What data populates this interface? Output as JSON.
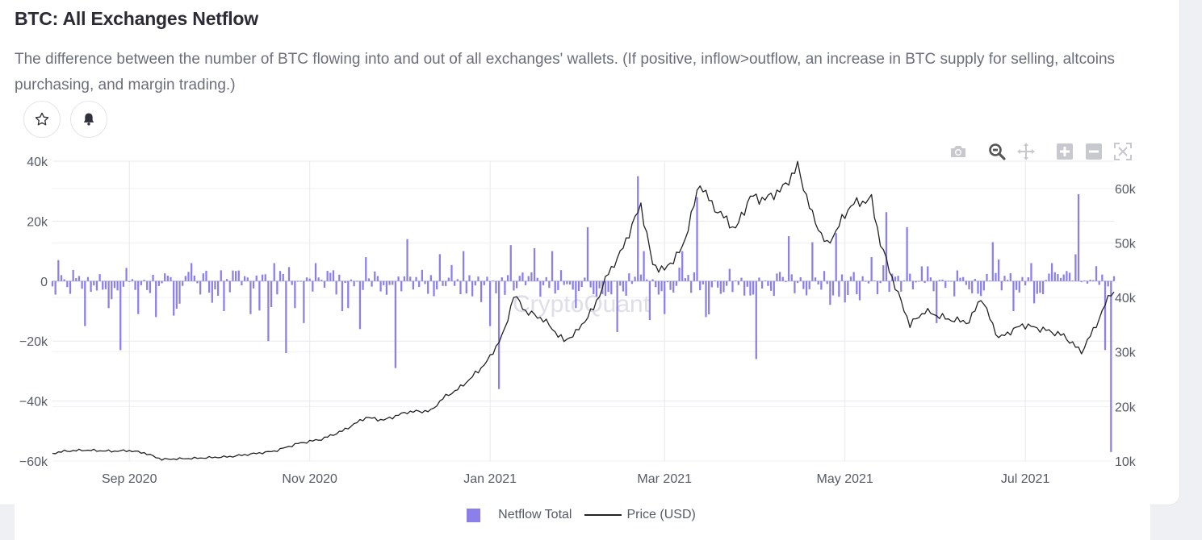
{
  "header": {
    "title": "BTC: All Exchanges Netflow",
    "description": "The difference between the number of BTC flowing into and out of all exchanges' wallets. (If positive, inflow>outflow, an increase in BTC supply for selling, altcoins purchasing, and margin trading.)"
  },
  "actions": {
    "favorite_icon": "star-icon",
    "alert_icon": "bell-icon"
  },
  "modebar": [
    "camera-icon",
    "zoom-icon",
    "pan-icon",
    "zoom-in-icon",
    "zoom-out-icon",
    "autoscale-icon"
  ],
  "watermark": "CryptoQuant",
  "colors": {
    "bars": "#8b80ea",
    "price": "#222222",
    "grid": "#e8e8ee"
  },
  "legend": {
    "netflow_label": "Netflow Total",
    "price_label": "Price (USD)"
  },
  "chart_data": {
    "type": "bar",
    "title": "BTC: All Exchanges Netflow",
    "x_ticks": [
      "Sep 2020",
      "Nov 2020",
      "Jan 2021",
      "Mar 2021",
      "May 2021",
      "Jul 2021"
    ],
    "x_range": [
      "2020-08-06",
      "2021-07-31"
    ],
    "y_left": {
      "ticks": [
        "40k",
        "20k",
        "0",
        "−20k",
        "−40k",
        "−60k"
      ],
      "range": [
        -60000,
        40000
      ]
    },
    "y_right": {
      "ticks": [
        "60k",
        "50k",
        "40k",
        "30k",
        "20k",
        "10k"
      ],
      "range": [
        10000,
        65000
      ]
    },
    "grid": true,
    "legend_position": "bottom-center",
    "series": [
      {
        "name": "Netflow Total",
        "kind": "bar",
        "axis": "left",
        "points": [
          [
            "2020-08-08",
            7000
          ],
          [
            "2020-08-17",
            -15000
          ],
          [
            "2020-08-25",
            -9000
          ],
          [
            "2020-08-29",
            -23000
          ],
          [
            "2020-09-04",
            -11000
          ],
          [
            "2020-09-10",
            -12000
          ],
          [
            "2020-09-16",
            -11500
          ],
          [
            "2020-09-22",
            6000
          ],
          [
            "2020-10-03",
            -10000
          ],
          [
            "2020-10-12",
            -11000
          ],
          [
            "2020-10-18",
            -20000
          ],
          [
            "2020-10-20",
            6000
          ],
          [
            "2020-10-24",
            -24000
          ],
          [
            "2020-10-27",
            -9000
          ],
          [
            "2020-10-30",
            -14000
          ],
          [
            "2020-11-03",
            6000
          ],
          [
            "2020-11-12",
            -10000
          ],
          [
            "2020-11-14",
            -9000
          ],
          [
            "2020-11-18",
            -16000
          ],
          [
            "2020-11-20",
            8000
          ],
          [
            "2020-11-30",
            -29000
          ],
          [
            "2020-12-04",
            14000
          ],
          [
            "2020-12-15",
            9000
          ],
          [
            "2020-12-23",
            10000
          ],
          [
            "2020-12-29",
            -7000
          ],
          [
            "2021-01-01",
            -15000
          ],
          [
            "2021-01-04",
            -36000
          ],
          [
            "2021-01-08",
            12000
          ],
          [
            "2021-01-16",
            11000
          ],
          [
            "2021-01-22",
            10000
          ],
          [
            "2021-01-30",
            -9000
          ],
          [
            "2021-02-03",
            18000
          ],
          [
            "2021-02-13",
            -17000
          ],
          [
            "2021-02-20",
            35000
          ],
          [
            "2021-02-22",
            10000
          ],
          [
            "2021-02-24",
            -13000
          ],
          [
            "2021-03-01",
            -11000
          ],
          [
            "2021-03-07",
            10000
          ],
          [
            "2021-03-12",
            28000
          ],
          [
            "2021-03-15",
            -12000
          ],
          [
            "2021-04-01",
            -26000
          ],
          [
            "2021-04-12",
            15000
          ],
          [
            "2021-04-20",
            13000
          ],
          [
            "2021-04-28",
            16000
          ],
          [
            "2021-05-10",
            8000
          ],
          [
            "2021-05-15",
            23000
          ],
          [
            "2021-05-22",
            18000
          ],
          [
            "2021-06-01",
            -14000
          ],
          [
            "2021-06-20",
            13000
          ],
          [
            "2021-06-27",
            -10000
          ],
          [
            "2021-07-03",
            6000
          ],
          [
            "2021-07-10",
            6000
          ],
          [
            "2021-07-19",
            29000
          ],
          [
            "2021-07-25",
            5000
          ],
          [
            "2021-07-28",
            -23000
          ],
          [
            "2021-07-30",
            -57000
          ]
        ]
      },
      {
        "name": "Price (USD)",
        "kind": "line",
        "axis": "right",
        "points": [
          [
            "2020-08-06",
            11400
          ],
          [
            "2020-08-10",
            11800
          ],
          [
            "2020-08-17",
            12000
          ],
          [
            "2020-08-26",
            11800
          ],
          [
            "2020-09-01",
            11900
          ],
          [
            "2020-09-06",
            11500
          ],
          [
            "2020-09-12",
            10300
          ],
          [
            "2020-09-23",
            10500
          ],
          [
            "2020-10-05",
            10800
          ],
          [
            "2020-10-20",
            11800
          ],
          [
            "2020-10-28",
            13200
          ],
          [
            "2020-11-05",
            14000
          ],
          [
            "2020-11-12",
            15500
          ],
          [
            "2020-11-20",
            18000
          ],
          [
            "2020-11-26",
            17500
          ],
          [
            "2020-12-04",
            19000
          ],
          [
            "2020-12-12",
            19200
          ],
          [
            "2020-12-16",
            21500
          ],
          [
            "2020-12-22",
            23500
          ],
          [
            "2020-12-28",
            26500
          ],
          [
            "2021-01-01",
            29000
          ],
          [
            "2021-01-06",
            34000
          ],
          [
            "2021-01-09",
            40500
          ],
          [
            "2021-01-13",
            37500
          ],
          [
            "2021-01-19",
            36000
          ],
          [
            "2021-01-26",
            32000
          ],
          [
            "2021-01-30",
            33500
          ],
          [
            "2021-02-05",
            38000
          ],
          [
            "2021-02-10",
            44500
          ],
          [
            "2021-02-14",
            48000
          ],
          [
            "2021-02-21",
            57000
          ],
          [
            "2021-02-25",
            46000
          ],
          [
            "2021-03-01",
            45000
          ],
          [
            "2021-03-07",
            49000
          ],
          [
            "2021-03-13",
            61000
          ],
          [
            "2021-03-17",
            57000
          ],
          [
            "2021-03-25",
            52500
          ],
          [
            "2021-03-30",
            58500
          ],
          [
            "2021-04-04",
            58000
          ],
          [
            "2021-04-10",
            60000
          ],
          [
            "2021-04-15",
            64000
          ],
          [
            "2021-04-20",
            55000
          ],
          [
            "2021-04-25",
            49500
          ],
          [
            "2021-05-03",
            57000
          ],
          [
            "2021-05-10",
            58000
          ],
          [
            "2021-05-13",
            50000
          ],
          [
            "2021-05-18",
            42000
          ],
          [
            "2021-05-23",
            35000
          ],
          [
            "2021-05-28",
            37500
          ],
          [
            "2021-06-05",
            36000
          ],
          [
            "2021-06-12",
            35500
          ],
          [
            "2021-06-16",
            40000
          ],
          [
            "2021-06-22",
            32500
          ],
          [
            "2021-06-30",
            35000
          ],
          [
            "2021-07-08",
            34000
          ],
          [
            "2021-07-14",
            33000
          ],
          [
            "2021-07-20",
            30000
          ],
          [
            "2021-07-25",
            35000
          ],
          [
            "2021-07-30",
            41000
          ]
        ]
      }
    ]
  }
}
